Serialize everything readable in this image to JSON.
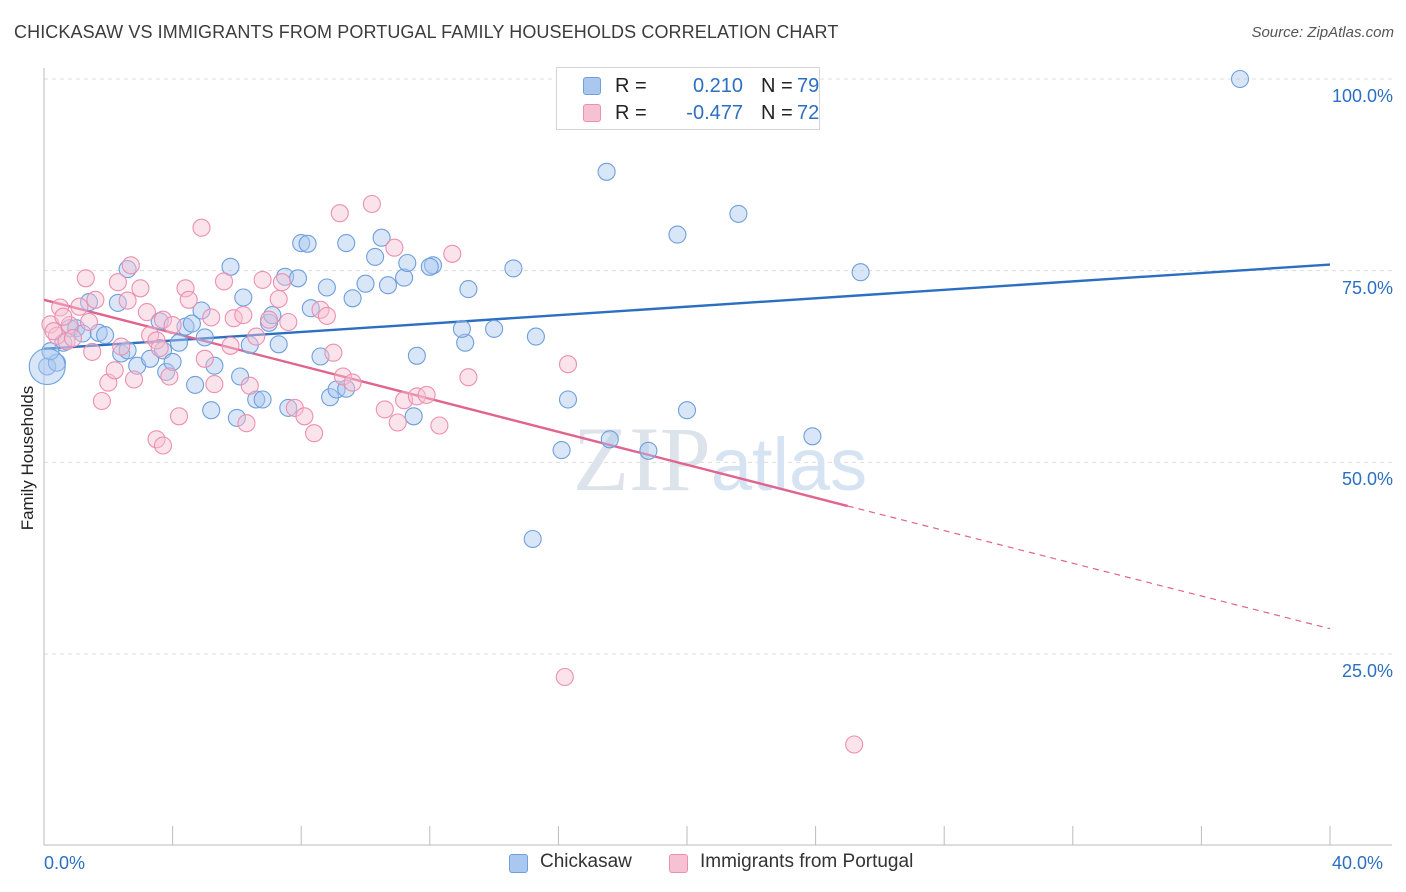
{
  "chart_data": {
    "type": "scatter",
    "title": "CHICKASAW VS IMMIGRANTS FROM PORTUGAL FAMILY HOUSEHOLDS CORRELATION CHART",
    "source": "Source: ZipAtlas.com",
    "xlabel": "",
    "ylabel": "Family Households",
    "xlim": [
      0,
      40
    ],
    "ylim": [
      0,
      105
    ],
    "x_tick_labels": [
      "0.0%",
      "40.0%"
    ],
    "y_tick_values": [
      25,
      50,
      75,
      100
    ],
    "y_tick_labels": [
      "25.0%",
      "50.0%",
      "75.0%",
      "100.0%"
    ],
    "grid": "horizontal dashed",
    "watermark": "ZIPatlas",
    "legend_stats": [
      {
        "r_label": "R =",
        "r_value": "0.210",
        "n_label": "N =",
        "n_value": "79"
      },
      {
        "r_label": "R =",
        "r_value": "-0.477",
        "n_label": "N =",
        "n_value": "72"
      }
    ],
    "series": [
      {
        "name": "Chickasaw",
        "color": "#6f9fdc",
        "fill": "#a9c7ef",
        "trend": {
          "x0": 0,
          "y0": 64.8,
          "x1": 40,
          "y1": 75.8,
          "color": "#2c6fc2"
        },
        "points": [
          [
            0.1,
            62.5
          ],
          [
            0.4,
            63
          ],
          [
            0.6,
            65.6
          ],
          [
            0.8,
            67.5
          ],
          [
            1.0,
            67.5
          ],
          [
            1.2,
            66.8
          ],
          [
            1.4,
            70.9
          ],
          [
            1.7,
            66.9
          ],
          [
            1.9,
            66.6
          ],
          [
            2.3,
            70.8
          ],
          [
            2.6,
            75.2
          ],
          [
            2.4,
            64.2
          ],
          [
            2.6,
            64.6
          ],
          [
            2.9,
            62.6
          ],
          [
            3.3,
            63.5
          ],
          [
            3.6,
            68.4
          ],
          [
            3.8,
            61.8
          ],
          [
            3.7,
            64.6
          ],
          [
            4.0,
            63.1
          ],
          [
            4.2,
            65.6
          ],
          [
            4.4,
            67.7
          ],
          [
            4.6,
            68.1
          ],
          [
            4.7,
            60.1
          ],
          [
            4.9,
            69.8
          ],
          [
            5.0,
            66.3
          ],
          [
            5.2,
            56.8
          ],
          [
            5.3,
            62.6
          ],
          [
            5.8,
            75.5
          ],
          [
            6.0,
            55.8
          ],
          [
            6.1,
            61.2
          ],
          [
            6.2,
            71.5
          ],
          [
            6.4,
            65.3
          ],
          [
            6.6,
            58.2
          ],
          [
            6.8,
            58.2
          ],
          [
            7.0,
            68.2
          ],
          [
            7.1,
            69.2
          ],
          [
            7.3,
            65.4
          ],
          [
            7.5,
            74.2
          ],
          [
            7.6,
            57.1
          ],
          [
            7.9,
            74.0
          ],
          [
            8.0,
            78.6
          ],
          [
            8.2,
            78.5
          ],
          [
            8.3,
            70.1
          ],
          [
            8.6,
            63.8
          ],
          [
            8.8,
            72.8
          ],
          [
            8.9,
            58.5
          ],
          [
            9.1,
            59.5
          ],
          [
            9.4,
            59.6
          ],
          [
            9.6,
            71.4
          ],
          [
            9.4,
            78.6
          ],
          [
            10.0,
            73.3
          ],
          [
            10.3,
            76.8
          ],
          [
            10.5,
            79.3
          ],
          [
            10.7,
            73.1
          ],
          [
            11.2,
            74.1
          ],
          [
            11.3,
            76.0
          ],
          [
            11.5,
            56.0
          ],
          [
            11.6,
            63.9
          ],
          [
            12.1,
            75.7
          ],
          [
            12.0,
            75.5
          ],
          [
            13.2,
            72.6
          ],
          [
            13.1,
            65.6
          ],
          [
            13.0,
            67.4
          ],
          [
            14.0,
            67.4
          ],
          [
            14.6,
            75.3
          ],
          [
            15.3,
            66.4
          ],
          [
            16.1,
            51.6
          ],
          [
            16.3,
            58.2
          ],
          [
            17.5,
            87.9
          ],
          [
            17.6,
            53.0
          ],
          [
            18.8,
            51.5
          ],
          [
            19.7,
            79.7
          ],
          [
            20.0,
            56.8
          ],
          [
            21.6,
            82.4
          ],
          [
            23.9,
            53.4
          ],
          [
            25.4,
            74.8
          ],
          [
            37.2,
            100.0
          ],
          [
            15.2,
            40.0
          ],
          [
            0.2,
            64.5
          ]
        ]
      },
      {
        "name": "Immigrants from Portugal",
        "color": "#ec8fb0",
        "fill": "#f6c1d3",
        "trend": {
          "x0": 0,
          "y0": 71.2,
          "x1": 25.0,
          "y1": 44.3,
          "color": "#e0648f",
          "dash_x1": 40,
          "dash_y1": 28.3
        },
        "points": [
          [
            0.2,
            68.0
          ],
          [
            0.4,
            66.5
          ],
          [
            0.5,
            70.2
          ],
          [
            0.7,
            65.8
          ],
          [
            0.8,
            67.9
          ],
          [
            1.1,
            70.3
          ],
          [
            1.3,
            74.0
          ],
          [
            1.4,
            68.3
          ],
          [
            1.6,
            71.2
          ],
          [
            1.8,
            58.0
          ],
          [
            2.0,
            60.4
          ],
          [
            2.2,
            62.0
          ],
          [
            2.3,
            73.5
          ],
          [
            2.6,
            71.1
          ],
          [
            2.7,
            75.7
          ],
          [
            2.8,
            60.8
          ],
          [
            3.0,
            72.7
          ],
          [
            3.2,
            69.6
          ],
          [
            3.3,
            66.6
          ],
          [
            3.5,
            53.0
          ],
          [
            3.5,
            65.9
          ],
          [
            3.7,
            52.2
          ],
          [
            3.7,
            68.6
          ],
          [
            3.9,
            61.2
          ],
          [
            4.0,
            67.9
          ],
          [
            4.2,
            56.0
          ],
          [
            4.4,
            72.7
          ],
          [
            4.5,
            71.2
          ],
          [
            4.9,
            80.6
          ],
          [
            5.0,
            63.5
          ],
          [
            5.2,
            68.9
          ],
          [
            5.3,
            60.2
          ],
          [
            5.6,
            73.6
          ],
          [
            5.9,
            68.8
          ],
          [
            6.2,
            69.2
          ],
          [
            6.3,
            55.1
          ],
          [
            6.4,
            60.0
          ],
          [
            6.6,
            66.4
          ],
          [
            6.8,
            73.8
          ],
          [
            7.0,
            68.6
          ],
          [
            7.3,
            71.3
          ],
          [
            7.4,
            73.5
          ],
          [
            7.6,
            68.3
          ],
          [
            7.8,
            57.1
          ],
          [
            8.1,
            56.0
          ],
          [
            8.4,
            53.8
          ],
          [
            8.6,
            69.9
          ],
          [
            8.8,
            69.1
          ],
          [
            9.0,
            64.3
          ],
          [
            9.2,
            82.5
          ],
          [
            9.3,
            61.2
          ],
          [
            9.6,
            60.4
          ],
          [
            10.2,
            83.7
          ],
          [
            10.6,
            56.9
          ],
          [
            10.9,
            78.0
          ],
          [
            11.0,
            55.2
          ],
          [
            11.2,
            58.1
          ],
          [
            11.6,
            58.6
          ],
          [
            11.9,
            58.8
          ],
          [
            12.3,
            54.8
          ],
          [
            12.7,
            77.2
          ],
          [
            13.2,
            61.1
          ],
          [
            16.3,
            62.8
          ],
          [
            16.2,
            22.0
          ],
          [
            25.2,
            13.2
          ],
          [
            0.3,
            67.1
          ],
          [
            0.9,
            66.2
          ],
          [
            1.5,
            64.4
          ],
          [
            2.4,
            65.1
          ],
          [
            0.6,
            69.0
          ],
          [
            3.6,
            64.9
          ],
          [
            5.8,
            65.2
          ]
        ]
      }
    ]
  }
}
